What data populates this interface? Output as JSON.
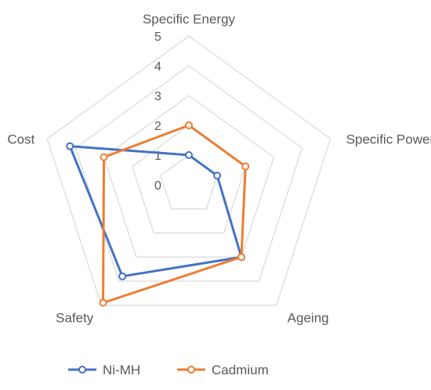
{
  "chart_data": {
    "type": "radar",
    "axes": [
      "Specific Energy",
      "Specific Power",
      "Ageing",
      "Safety",
      "Cost"
    ],
    "r_ticks": [
      "0",
      "1",
      "2",
      "3",
      "4",
      "5"
    ],
    "r_range": [
      0,
      5
    ],
    "grid": true,
    "legend_position": "bottom",
    "series": [
      {
        "name": "Ni-MH",
        "color": "#4472C4",
        "values": [
          1,
          1,
          3,
          3.8,
          4.2
        ]
      },
      {
        "name": "Cadmium",
        "color": "#ED7D31",
        "values": [
          2,
          2,
          3,
          4.9,
          3
        ]
      }
    ]
  }
}
